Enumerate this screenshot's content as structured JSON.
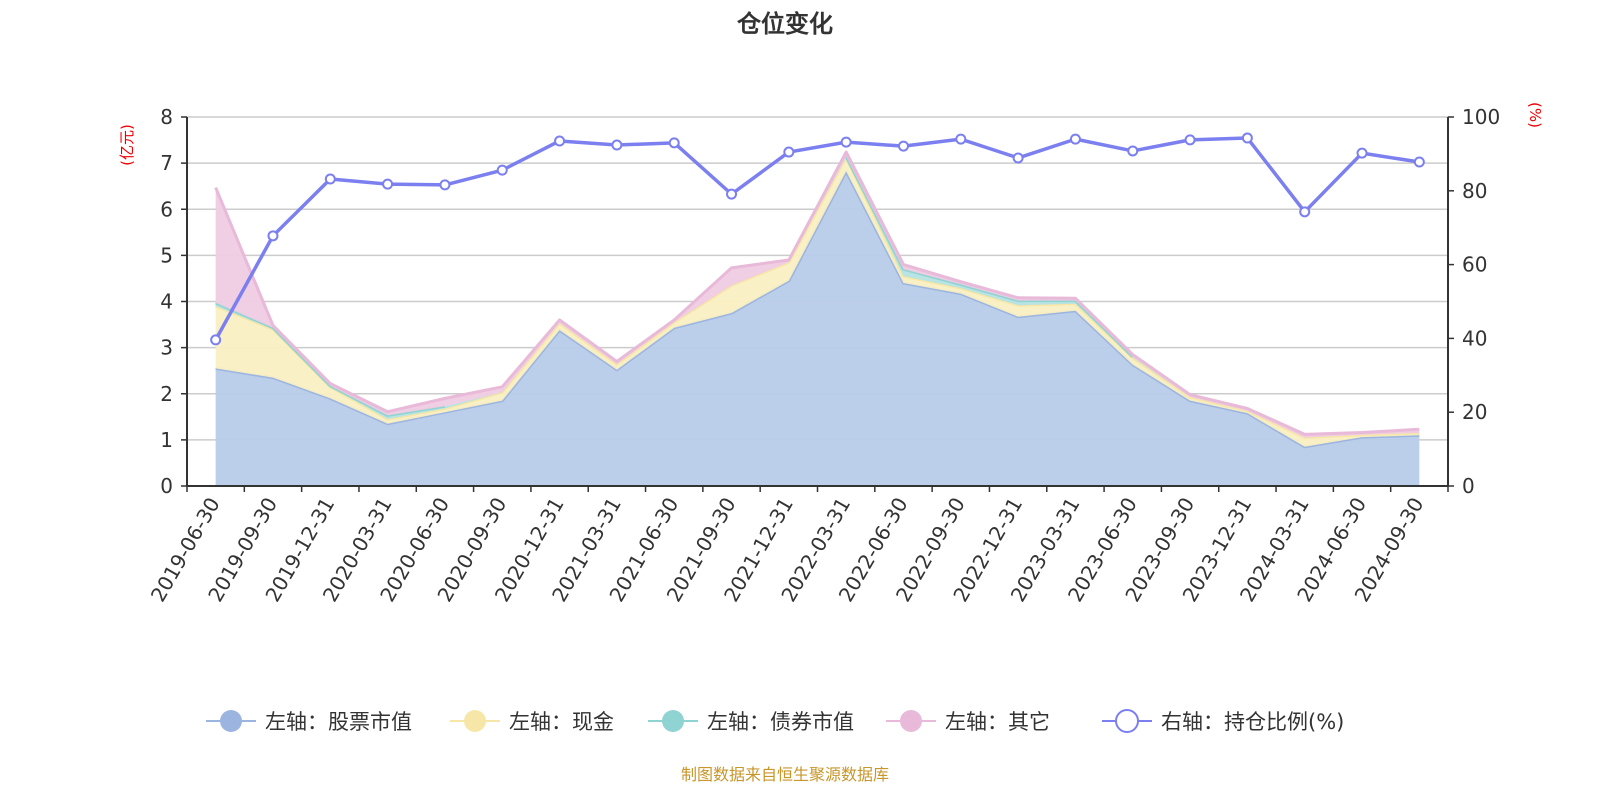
{
  "chart_data": {
    "type": "area",
    "title": "仓位变化",
    "left_axis_unit": "(亿元)",
    "right_axis_unit": "(%)",
    "ylim_left": [
      0,
      8
    ],
    "ylim_right": [
      0,
      100
    ],
    "yticks_left": [
      "0",
      "1",
      "2",
      "3",
      "4",
      "5",
      "6",
      "7",
      "8"
    ],
    "yticks_right": [
      "0",
      "20",
      "40",
      "60",
      "80",
      "100"
    ],
    "grid": true,
    "legend_position": "bottom",
    "stacked": true,
    "categories": [
      "2019-06-30",
      "2019-09-30",
      "2019-12-31",
      "2020-03-31",
      "2020-06-30",
      "2020-09-30",
      "2020-12-31",
      "2021-03-31",
      "2021-06-30",
      "2021-09-30",
      "2021-12-31",
      "2022-03-31",
      "2022-06-30",
      "2022-09-30",
      "2022-12-31",
      "2023-03-31",
      "2023-06-30",
      "2023-09-30",
      "2023-12-31",
      "2024-03-31",
      "2024-06-30",
      "2024-09-30"
    ],
    "series": [
      {
        "name": "左轴：股票市值",
        "axis": "left",
        "color": "#9bb5e0",
        "fill": "#b8cce9",
        "values": [
          2.55,
          2.35,
          1.9,
          1.35,
          1.6,
          1.85,
          3.38,
          2.52,
          3.43,
          3.75,
          4.45,
          6.82,
          4.4,
          4.17,
          3.67,
          3.8,
          2.63,
          1.85,
          1.58,
          0.85,
          1.06,
          1.1
        ]
      },
      {
        "name": "左轴：现金",
        "axis": "left",
        "color": "#f6e7a8",
        "fill": "#faefc2",
        "values": [
          1.35,
          1.05,
          0.25,
          0.1,
          0.08,
          0.18,
          0.15,
          0.12,
          0.12,
          0.6,
          0.4,
          0.3,
          0.15,
          0.12,
          0.25,
          0.15,
          0.15,
          0.08,
          0.05,
          0.2,
          0.05,
          0.05
        ]
      },
      {
        "name": "左轴：债券市值",
        "axis": "left",
        "color": "#8fd3d3",
        "fill": "#b5e3e3",
        "values": [
          0.07,
          0.03,
          0.02,
          0.08,
          0.05,
          null,
          null,
          null,
          null,
          null,
          null,
          0.02,
          0.15,
          0.08,
          0.1,
          0.07,
          0.02,
          null,
          null,
          null,
          null,
          null
        ]
      },
      {
        "name": "左轴：其它",
        "axis": "left",
        "color": "#e8b9d8",
        "fill": "#efcce3",
        "values": [
          2.5,
          0.05,
          0.05,
          0.08,
          0.17,
          0.12,
          0.07,
          0.06,
          0.05,
          0.38,
          0.05,
          0.1,
          0.1,
          0.06,
          0.06,
          0.05,
          0.05,
          0.05,
          0.05,
          0.07,
          0.05,
          0.08
        ]
      },
      {
        "name": "右轴：持仓比例(%)",
        "axis": "right",
        "type": "line",
        "color": "#7b7ff0",
        "values": [
          39.6,
          67.8,
          83.2,
          81.8,
          81.6,
          85.6,
          93.5,
          92.4,
          93.0,
          79.1,
          90.5,
          93.2,
          92.1,
          94.0,
          88.9,
          94.0,
          90.8,
          93.8,
          94.3,
          74.3,
          90.2,
          87.8
        ]
      }
    ]
  },
  "footer": {
    "source": "制图数据来自恒生聚源数据库",
    "color": "#c8962a"
  }
}
